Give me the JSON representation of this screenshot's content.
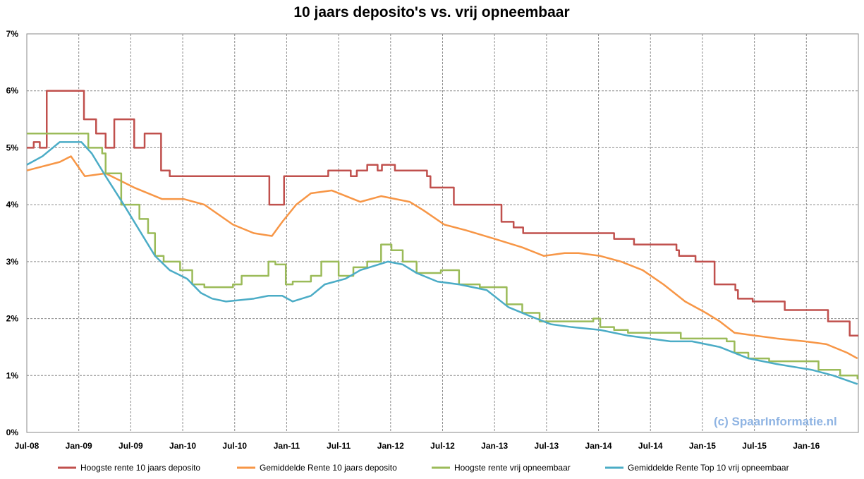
{
  "chart_data": {
    "type": "line",
    "title": "10 jaars deposito's vs. vrij opneembaar",
    "watermark": "(c) SpaarInformatie.nl",
    "xlabel": "",
    "ylabel": "",
    "x_unit": "months since Jul-08",
    "xlim": [
      0,
      96
    ],
    "ylim": [
      0,
      7
    ],
    "yticks": [
      0,
      1,
      2,
      3,
      4,
      5,
      6,
      7
    ],
    "ytick_labels": [
      "0%",
      "1%",
      "2%",
      "3%",
      "4%",
      "5%",
      "6%",
      "7%"
    ],
    "xticks": [
      0,
      6,
      12,
      18,
      24,
      30,
      36,
      42,
      48,
      54,
      60,
      66,
      72,
      78,
      84,
      90
    ],
    "xtick_labels": [
      "Jul-08",
      "Jan-09",
      "Jul-09",
      "Jan-10",
      "Jul-10",
      "Jan-11",
      "Jul-11",
      "Jan-12",
      "Jul-12",
      "Jan-13",
      "Jul-13",
      "Jan-14",
      "Jul-14",
      "Jan-15",
      "Jul-15",
      "Jan-16"
    ],
    "grid": true,
    "legend_position": "bottom",
    "series": [
      {
        "name": "Hoogste rente 10 jaars deposito",
        "color": "#c0504d",
        "step": true,
        "x": [
          0,
          0.8,
          1.5,
          2.3,
          6.6,
          8.0,
          9.1,
          10.1,
          12.4,
          13.6,
          15.5,
          16.5,
          28.0,
          29.7,
          34.8,
          37.4,
          38.1,
          39.3,
          40.5,
          41.0,
          42.5,
          46.2,
          46.6,
          49.3,
          54.8,
          56.2,
          57.3,
          67.8,
          70.1,
          75.0,
          75.3,
          77.2,
          79.4,
          81.8,
          82.1,
          83.8,
          87.5,
          92.5,
          95.0,
          96
        ],
        "y": [
          5.0,
          5.1,
          5.0,
          6.0,
          5.5,
          5.25,
          5.0,
          5.5,
          5.0,
          5.25,
          4.6,
          4.5,
          4.0,
          4.5,
          4.6,
          4.5,
          4.6,
          4.7,
          4.6,
          4.7,
          4.6,
          4.5,
          4.3,
          4.0,
          3.7,
          3.6,
          3.5,
          3.4,
          3.3,
          3.2,
          3.1,
          3.0,
          2.6,
          2.5,
          2.35,
          2.3,
          2.15,
          1.95,
          1.7,
          1.7
        ]
      },
      {
        "name": "Gemiddelde Rente 10 jaars deposito",
        "color": "#f79646",
        "step": false,
        "x": [
          0,
          3.8,
          5.1,
          6.7,
          9.1,
          12.4,
          15.6,
          18.1,
          20.5,
          23.8,
          26.2,
          28.3,
          29.5,
          31.1,
          32.8,
          35.2,
          38.5,
          40.9,
          44.2,
          45.8,
          48.2,
          50.7,
          54.0,
          57.2,
          59.7,
          62.1,
          63.7,
          66.2,
          68.6,
          71.1,
          73.5,
          76.0,
          78.4,
          80.0,
          81.7,
          84.1,
          86.6,
          89.8,
          92.3,
          94.7,
          95.9
        ],
        "y": [
          4.6,
          4.75,
          4.85,
          4.5,
          4.55,
          4.3,
          4.1,
          4.1,
          4.0,
          3.65,
          3.5,
          3.45,
          3.7,
          4.0,
          4.2,
          4.25,
          4.05,
          4.15,
          4.05,
          3.9,
          3.65,
          3.55,
          3.4,
          3.25,
          3.1,
          3.15,
          3.15,
          3.1,
          3.0,
          2.85,
          2.6,
          2.3,
          2.1,
          1.95,
          1.75,
          1.7,
          1.65,
          1.6,
          1.55,
          1.4,
          1.3
        ]
      },
      {
        "name": "Hoogste rente vrij opneembaar",
        "color": "#9bbb59",
        "step": true,
        "x": [
          0,
          7.1,
          8.7,
          9.1,
          10.9,
          13.0,
          14.0,
          14.8,
          15.8,
          17.7,
          19.1,
          20.5,
          23.8,
          24.8,
          27.9,
          28.7,
          29.9,
          30.7,
          32.8,
          34.0,
          36.0,
          37.7,
          39.3,
          40.9,
          42.1,
          43.4,
          45.0,
          47.8,
          49.9,
          52.3,
          55.4,
          57.2,
          59.2,
          65.4,
          66.2,
          67.8,
          69.4,
          75.5,
          80.8,
          81.7,
          83.3,
          85.7,
          91.4,
          93.9,
          95.9,
          96
        ],
        "y": [
          5.25,
          5.0,
          4.9,
          4.55,
          4.0,
          3.75,
          3.5,
          3.1,
          3.0,
          2.85,
          2.6,
          2.55,
          2.6,
          2.75,
          3.0,
          2.95,
          2.6,
          2.65,
          2.75,
          3.0,
          2.75,
          2.9,
          3.0,
          3.3,
          3.2,
          3.0,
          2.8,
          2.85,
          2.6,
          2.55,
          2.25,
          2.1,
          1.95,
          2.0,
          1.85,
          1.8,
          1.75,
          1.65,
          1.6,
          1.4,
          1.3,
          1.25,
          1.1,
          1.0,
          0.95,
          0.95
        ]
      },
      {
        "name": "Gemiddelde Rente Top 10 vrij opneembaar",
        "color": "#4bacc6",
        "step": false,
        "x": [
          0,
          1.8,
          3.8,
          6.3,
          7.5,
          9.1,
          11.2,
          12.8,
          14.8,
          16.5,
          18.5,
          20.1,
          21.4,
          23.0,
          26.2,
          27.9,
          29.5,
          30.7,
          32.8,
          34.4,
          36.8,
          38.5,
          41.7,
          43.4,
          45.0,
          47.4,
          49.9,
          53.1,
          55.6,
          58.0,
          60.5,
          62.9,
          66.2,
          69.4,
          74.3,
          76.8,
          80.0,
          83.3,
          86.6,
          90.6,
          93.1,
          95.9
        ],
        "y": [
          4.7,
          4.85,
          5.1,
          5.1,
          4.9,
          4.5,
          4.0,
          3.6,
          3.1,
          2.85,
          2.7,
          2.45,
          2.35,
          2.3,
          2.35,
          2.4,
          2.4,
          2.3,
          2.4,
          2.6,
          2.7,
          2.85,
          3.0,
          2.95,
          2.8,
          2.65,
          2.6,
          2.5,
          2.2,
          2.05,
          1.9,
          1.85,
          1.8,
          1.7,
          1.6,
          1.6,
          1.5,
          1.3,
          1.2,
          1.1,
          1.0,
          0.85
        ]
      }
    ]
  }
}
